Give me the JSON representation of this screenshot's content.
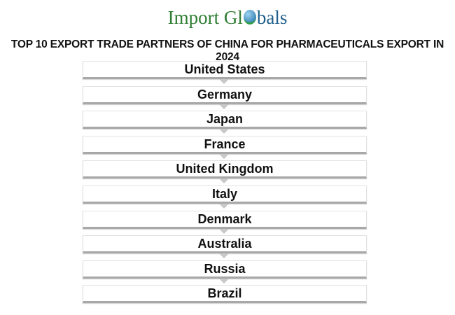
{
  "logo": {
    "part1": "Import Gl",
    "part2": "bals"
  },
  "title": "TOP 10 EXPORT TRADE PARTNERS OF CHINA FOR PHARMACEUTICALS EXPORT IN 2024",
  "partners": [
    "United States",
    "Germany",
    "Japan",
    "France",
    "United Kingdom",
    "Italy",
    "Denmark",
    "Australia",
    "Russia",
    "Brazil"
  ]
}
